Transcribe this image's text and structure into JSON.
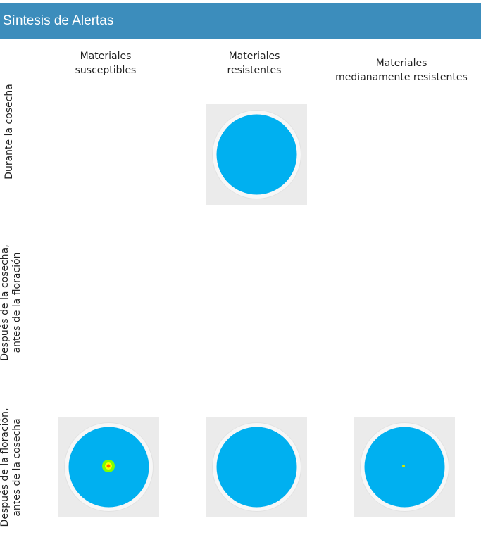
{
  "header": {
    "title": "Síntesis de Alertas"
  },
  "columns": [
    {
      "label": "Materiales\nsusceptibles"
    },
    {
      "label": "Materiales\nresistentes"
    },
    {
      "label": "Materiales\nmedianamente resistentes"
    }
  ],
  "rows": [
    {
      "label": "Durante la cosecha"
    },
    {
      "label": "Después de la cosecha,\nantes de la floración"
    },
    {
      "label": "Después de la floración,\nantes de la cosecha"
    }
  ],
  "colors": {
    "header": "#3c8dbc",
    "disc": "#00b0f0",
    "cell_bg": "#ebebeb",
    "alert_green": "#7fff00",
    "alert_yellow": "#ffff00",
    "alert_red": "#ff6a00"
  },
  "cells": [
    {
      "row": 0,
      "col": 1,
      "alert": "none"
    },
    {
      "row": 2,
      "col": 0,
      "alert": "medium"
    },
    {
      "row": 2,
      "col": 1,
      "alert": "none"
    },
    {
      "row": 2,
      "col": 2,
      "alert": "low"
    }
  ]
}
